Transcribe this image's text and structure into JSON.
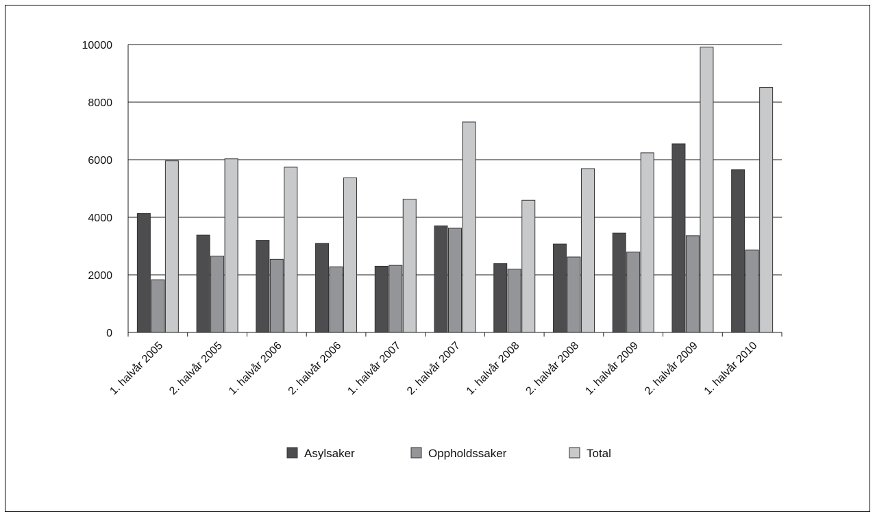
{
  "chart_data": {
    "type": "bar",
    "title": "",
    "xlabel": "",
    "ylabel": "",
    "ylim": [
      0,
      10000
    ],
    "yticks": [
      0,
      2000,
      4000,
      6000,
      8000,
      10000
    ],
    "grid": true,
    "legend_position": "bottom",
    "categories": [
      "1. halvår 2005",
      "2. halvår 2005",
      "1. halvår 2006",
      "2. halvår 2006",
      "1. halvår 2007",
      "2. halvår 2007",
      "1. halvår 2008",
      "2. halvår 2008",
      "1. halvår 2009",
      "2. halvår 2009",
      "1. halvår 2010"
    ],
    "series": [
      {
        "name": "Asylsaker",
        "color": "#4d4d4f",
        "values": [
          4130,
          3380,
          3200,
          3090,
          2300,
          3700,
          2390,
          3070,
          3450,
          6550,
          5650
        ]
      },
      {
        "name": "Oppholdssaker",
        "color": "#939598",
        "values": [
          1830,
          2650,
          2540,
          2280,
          2330,
          3620,
          2200,
          2620,
          2790,
          3360,
          2860
        ]
      },
      {
        "name": "Total",
        "color": "#c8c9cb",
        "values": [
          5960,
          6030,
          5740,
          5370,
          4630,
          7310,
          4590,
          5690,
          6240,
          9910,
          8510
        ]
      }
    ]
  }
}
